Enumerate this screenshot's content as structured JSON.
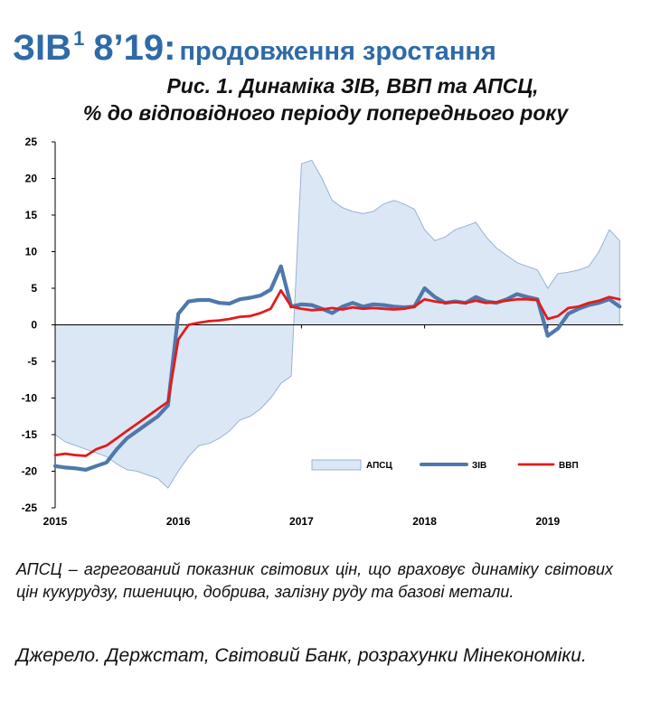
{
  "header": {
    "title_main": "ЗІВ",
    "title_sup": "1",
    "title_period": "8’19:",
    "title_rest": "продовження зростання",
    "subtitle_line1": "Рис. 1. Динаміка ЗІВ, ВВП та АПСЦ,",
    "subtitle_line2": "% до відповідного періоду попереднього року"
  },
  "colors": {
    "apsc_fill": "#dce7f5",
    "apsc_stroke": "#95b3d7",
    "ziv": "#4f78ac",
    "vvp": "#e31b1b",
    "axis": "#000000"
  },
  "chart_data": {
    "type": "line",
    "title": "Рис. 1. Динаміка ЗІВ, ВВП та АПСЦ, % до відповідного періоду попереднього року",
    "xlabel": "",
    "ylabel": "",
    "ylim": [
      -25,
      25
    ],
    "yticks": [
      25,
      20,
      15,
      10,
      5,
      0,
      -5,
      -10,
      -15,
      -20,
      -25
    ],
    "xticks": [
      "2015",
      "2016",
      "2017",
      "2018",
      "2019"
    ],
    "x_period": "monthly, Jan 2015 – Aug 2019",
    "grid": false,
    "legend_position": "lower-right",
    "series": [
      {
        "name": "АПСЦ",
        "style": "area",
        "values": [
          -15,
          -16,
          -16.5,
          -17,
          -17.5,
          -18,
          -19,
          -19.8,
          -20,
          -20.5,
          -21,
          -22.3,
          -20,
          -18,
          -16.5,
          -16.2,
          -15.5,
          -14.5,
          -13,
          -12.5,
          -11.5,
          -10,
          -8,
          -7,
          22,
          22.5,
          20,
          17,
          16,
          15.5,
          15.2,
          15.5,
          16.5,
          17,
          16.5,
          15.8,
          13,
          11.5,
          12,
          13,
          13.5,
          14,
          12,
          10.5,
          9.5,
          8.5,
          8,
          7.5,
          5,
          7,
          7.2,
          7.5,
          8,
          10,
          13,
          11.5
        ]
      },
      {
        "name": "ЗІВ",
        "style": "line",
        "values": [
          -19.3,
          -19.5,
          -19.6,
          -19.8,
          -19.3,
          -18.8,
          -17,
          -15.5,
          -14.5,
          -13.5,
          -12.5,
          -11,
          1.5,
          3.2,
          3.4,
          3.4,
          3.0,
          2.9,
          3.5,
          3.7,
          4.0,
          4.8,
          8.0,
          2.5,
          2.8,
          2.7,
          2.2,
          1.6,
          2.5,
          3.0,
          2.5,
          2.8,
          2.7,
          2.5,
          2.4,
          2.5,
          5.0,
          3.8,
          3.0,
          3.2,
          3.0,
          3.8,
          3.2,
          3.0,
          3.5,
          4.2,
          3.8,
          3.5,
          -1.5,
          -0.5,
          1.5,
          2.2,
          2.7,
          3.0,
          3.5,
          2.5
        ]
      },
      {
        "name": "ВВП",
        "style": "line",
        "values": [
          -17.8,
          -17.6,
          -17.8,
          -17.9,
          -17,
          -16.5,
          -15.5,
          -14.5,
          -13.5,
          -12.5,
          -11.5,
          -10.5,
          -2,
          0,
          0.3,
          0.5,
          0.6,
          0.8,
          1.1,
          1.2,
          1.6,
          2.2,
          4.7,
          2.5,
          2.2,
          2.0,
          2.1,
          2.3,
          2.1,
          2.4,
          2.2,
          2.3,
          2.2,
          2.1,
          2.2,
          2.5,
          3.5,
          3.2,
          3.0,
          3.1,
          3.0,
          3.3,
          3.0,
          3.1,
          3.3,
          3.5,
          3.5,
          3.4,
          0.8,
          1.2,
          2.3,
          2.5,
          3.0,
          3.3,
          3.8,
          3.5
        ]
      }
    ]
  },
  "footnote": "АПСЦ – агрегований показник світових цін, що враховує динаміку світових цін кукурудзу, пшеницю, добрива, залізну руду та базові метали.",
  "source": "Джерело. Держстат, Світовий Банк, розрахунки Мінекономіки."
}
